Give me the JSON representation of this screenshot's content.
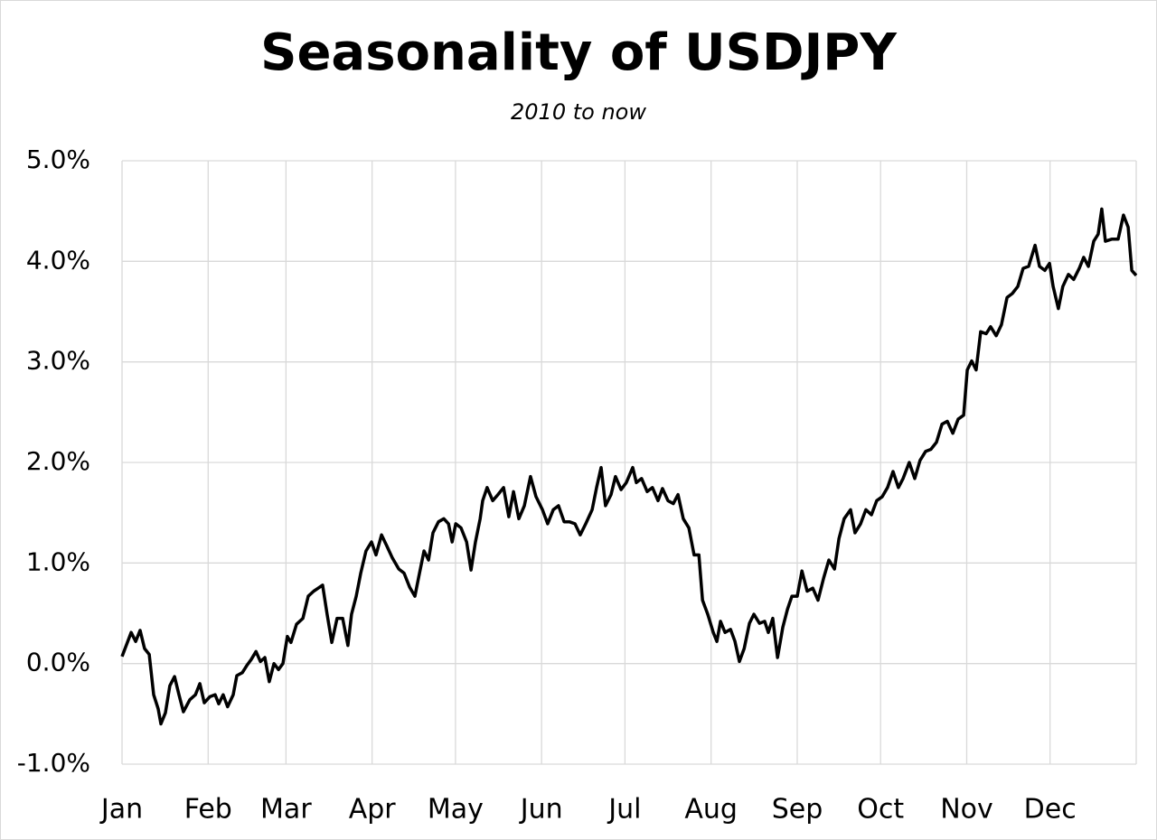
{
  "chart_data": {
    "type": "line",
    "title": "Seasonality of USDJPY",
    "subtitle": "2010 to now",
    "x": [
      0,
      3.3,
      4.9,
      6.5,
      8.1,
      9.8,
      11.4,
      13.0,
      14.0,
      15.6,
      17.2,
      18.9,
      20.5,
      22.1,
      24.4,
      26.4,
      28.0,
      29.6,
      31.6,
      33.5,
      34.8,
      36.4,
      38.0,
      40.0,
      41.3,
      43.3,
      44.9,
      46.5,
      48.2,
      49.8,
      51.4,
      53.0,
      54.7,
      56.3,
      57.9,
      59.5,
      60.8,
      62.8,
      65.1,
      67.0,
      69.0,
      70.6,
      72.2,
      73.8,
      75.5,
      77.4,
      79.4,
      81.3,
      82.6,
      84.3,
      85.9,
      87.8,
      89.8,
      91.4,
      93.4,
      95.3,
      97.3,
      99.6,
      101.5,
      103.5,
      105.4,
      106.7,
      108.7,
      110.3,
      111.9,
      113.9,
      115.8,
      117.5,
      118.8,
      120.1,
      122.0,
      124.0,
      125.6,
      127.2,
      128.9,
      129.8,
      131.4,
      133.4,
      135.3,
      137.3,
      139.2,
      140.9,
      142.8,
      144.8,
      147.0,
      149.0,
      151.3,
      153.2,
      155.2,
      157.1,
      159.1,
      161.0,
      163.0,
      164.9,
      166.9,
      169.2,
      170.8,
      172.4,
      174.0,
      176.0,
      177.6,
      179.6,
      181.5,
      183.8,
      185.1,
      187.0,
      189.0,
      190.9,
      192.9,
      194.5,
      196.5,
      198.4,
      200.1,
      202.0,
      204.0,
      205.9,
      207.6,
      208.9,
      210.8,
      212.8,
      214.1,
      215.4,
      217.0,
      219.0,
      220.6,
      222.2,
      223.9,
      225.8,
      227.4,
      229.4,
      231.3,
      232.6,
      234.2,
      235.9,
      237.8,
      239.5,
      241.1,
      243.0,
      244.7,
      246.6,
      248.6,
      250.5,
      252.5,
      254.4,
      256.4,
      258.0,
      259.9,
      262.2,
      263.8,
      265.8,
      267.7,
      269.7,
      271.6,
      273.6,
      275.5,
      277.5,
      279.4,
      281.1,
      283.3,
      285.3,
      287.2,
      289.2,
      291.1,
      293.1,
      295.1,
      297.0,
      299.0,
      300.9,
      302.9,
      304.2,
      305.8,
      307.4,
      309.0,
      311.0,
      312.6,
      314.6,
      316.5,
      318.5,
      320.4,
      322.4,
      324.3,
      326.3,
      328.6,
      330.2,
      332.1,
      333.8,
      335.1,
      337.0,
      338.6,
      340.6,
      342.5,
      344.5,
      346.1,
      347.8,
      349.7,
      351.3,
      352.6,
      353.9,
      356.2,
      358.5,
      360.4,
      362.1,
      363.4,
      365.0
    ],
    "series": [
      {
        "name": "USDJPY",
        "color": "#000000",
        "values": [
          0.07,
          0.31,
          0.22,
          0.33,
          0.15,
          0.09,
          -0.31,
          -0.45,
          -0.6,
          -0.49,
          -0.22,
          -0.13,
          -0.31,
          -0.48,
          -0.36,
          -0.31,
          -0.2,
          -0.39,
          -0.33,
          -0.31,
          -0.4,
          -0.31,
          -0.43,
          -0.31,
          -0.12,
          -0.09,
          -0.02,
          0.04,
          0.12,
          0.02,
          0.06,
          -0.18,
          0,
          -0.06,
          0,
          0.27,
          0.21,
          0.39,
          0.45,
          0.67,
          0.72,
          0.75,
          0.78,
          0.49,
          0.21,
          0.45,
          0.45,
          0.18,
          0.49,
          0.67,
          0.9,
          1.12,
          1.21,
          1.08,
          1.28,
          1.17,
          1.05,
          0.94,
          0.9,
          0.76,
          0.67,
          0.85,
          1.12,
          1.03,
          1.3,
          1.41,
          1.44,
          1.39,
          1.21,
          1.39,
          1.35,
          1.21,
          0.93,
          1.21,
          1.44,
          1.62,
          1.75,
          1.62,
          1.68,
          1.75,
          1.46,
          1.71,
          1.44,
          1.57,
          1.86,
          1.66,
          1.53,
          1.39,
          1.53,
          1.57,
          1.41,
          1.41,
          1.39,
          1.28,
          1.39,
          1.53,
          1.75,
          1.95,
          1.57,
          1.68,
          1.86,
          1.73,
          1.8,
          1.95,
          1.8,
          1.84,
          1.71,
          1.75,
          1.62,
          1.74,
          1.62,
          1.59,
          1.68,
          1.44,
          1.35,
          1.08,
          1.08,
          0.63,
          0.49,
          0.31,
          0.22,
          0.42,
          0.31,
          0.34,
          0.22,
          0.02,
          0.15,
          0.4,
          0.49,
          0.4,
          0.42,
          0.31,
          0.45,
          0.06,
          0.36,
          0.54,
          0.67,
          0.67,
          0.92,
          0.72,
          0.75,
          0.63,
          0.85,
          1.03,
          0.94,
          1.24,
          1.44,
          1.53,
          1.3,
          1.39,
          1.53,
          1.48,
          1.62,
          1.66,
          1.75,
          1.91,
          1.75,
          1.84,
          2.0,
          1.84,
          2.02,
          2.11,
          2.13,
          2.2,
          2.38,
          2.41,
          2.29,
          2.43,
          2.47,
          2.92,
          3.01,
          2.92,
          3.3,
          3.28,
          3.35,
          3.26,
          3.37,
          3.64,
          3.68,
          3.75,
          3.93,
          3.95,
          4.16,
          3.95,
          3.91,
          3.98,
          3.75,
          3.53,
          3.75,
          3.87,
          3.82,
          3.93,
          4.04,
          3.95,
          4.2,
          4.27,
          4.52,
          4.2,
          4.22,
          4.22,
          4.46,
          4.34,
          3.91,
          3.86
        ]
      }
    ],
    "xlim": [
      0,
      365
    ],
    "xticks": [
      {
        "value": 0,
        "label": "Jan"
      },
      {
        "value": 31,
        "label": "Feb"
      },
      {
        "value": 59,
        "label": "Mar"
      },
      {
        "value": 90,
        "label": "Apr"
      },
      {
        "value": 120,
        "label": "May"
      },
      {
        "value": 151,
        "label": "Jun"
      },
      {
        "value": 181,
        "label": "Jul"
      },
      {
        "value": 212,
        "label": "Aug"
      },
      {
        "value": 243,
        "label": "Sep"
      },
      {
        "value": 273,
        "label": "Oct"
      },
      {
        "value": 304,
        "label": "Nov"
      },
      {
        "value": 334,
        "label": "Dec"
      }
    ],
    "ylim": [
      -1,
      5
    ],
    "yticks": [
      {
        "value": -1,
        "label": "-1.0%"
      },
      {
        "value": 0,
        "label": "0.0%"
      },
      {
        "value": 1,
        "label": "1.0%"
      },
      {
        "value": 2,
        "label": "2.0%"
      },
      {
        "value": 3,
        "label": "3.0%"
      },
      {
        "value": 4,
        "label": "4.0%"
      },
      {
        "value": 5,
        "label": "5.0%"
      }
    ],
    "grid": true
  }
}
